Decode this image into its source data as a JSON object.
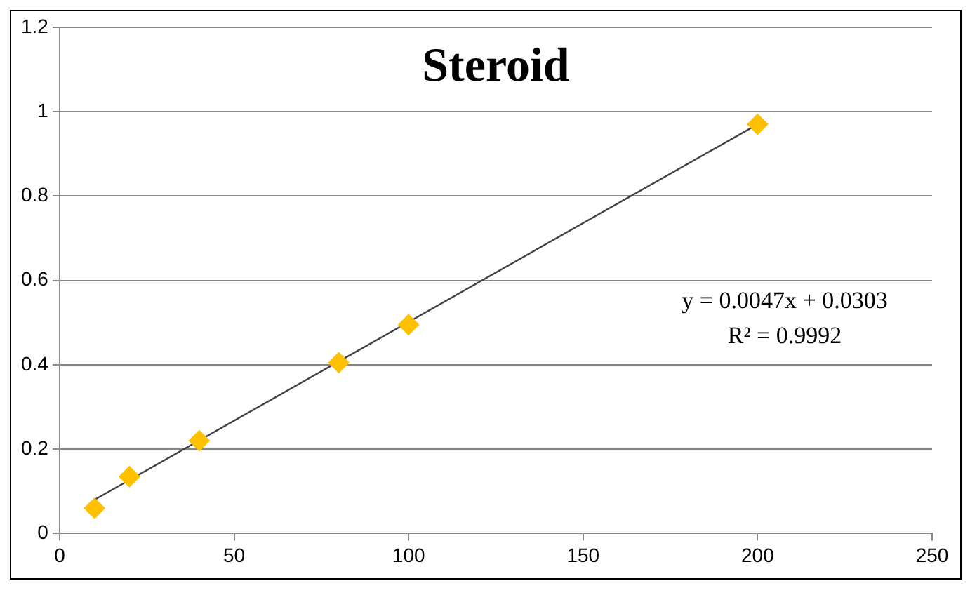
{
  "chart_data": {
    "type": "scatter",
    "title": "Steroid",
    "marker": "diamond",
    "grid": "y",
    "legend": false,
    "xlim": [
      0,
      250
    ],
    "xticks": [
      0,
      50,
      100,
      150,
      200,
      250
    ],
    "ylim": [
      0,
      1.2
    ],
    "yticks": [
      0,
      0.2,
      0.4,
      0.6,
      0.8,
      1,
      1.2
    ],
    "series": [
      {
        "type": "scatter",
        "color": "#ffc000",
        "x": [
          10,
          20,
          40,
          80,
          100,
          200
        ],
        "values": [
          0.06,
          0.135,
          0.22,
          0.405,
          0.495,
          0.97
        ]
      },
      {
        "type": "line",
        "color": "#404040",
        "marker": "none",
        "x": [
          10,
          200
        ],
        "values": [
          0.08,
          0.97
        ]
      }
    ],
    "annotations": [
      "y = 0.0047x + 0.0303",
      "R² = 0.9992"
    ]
  }
}
